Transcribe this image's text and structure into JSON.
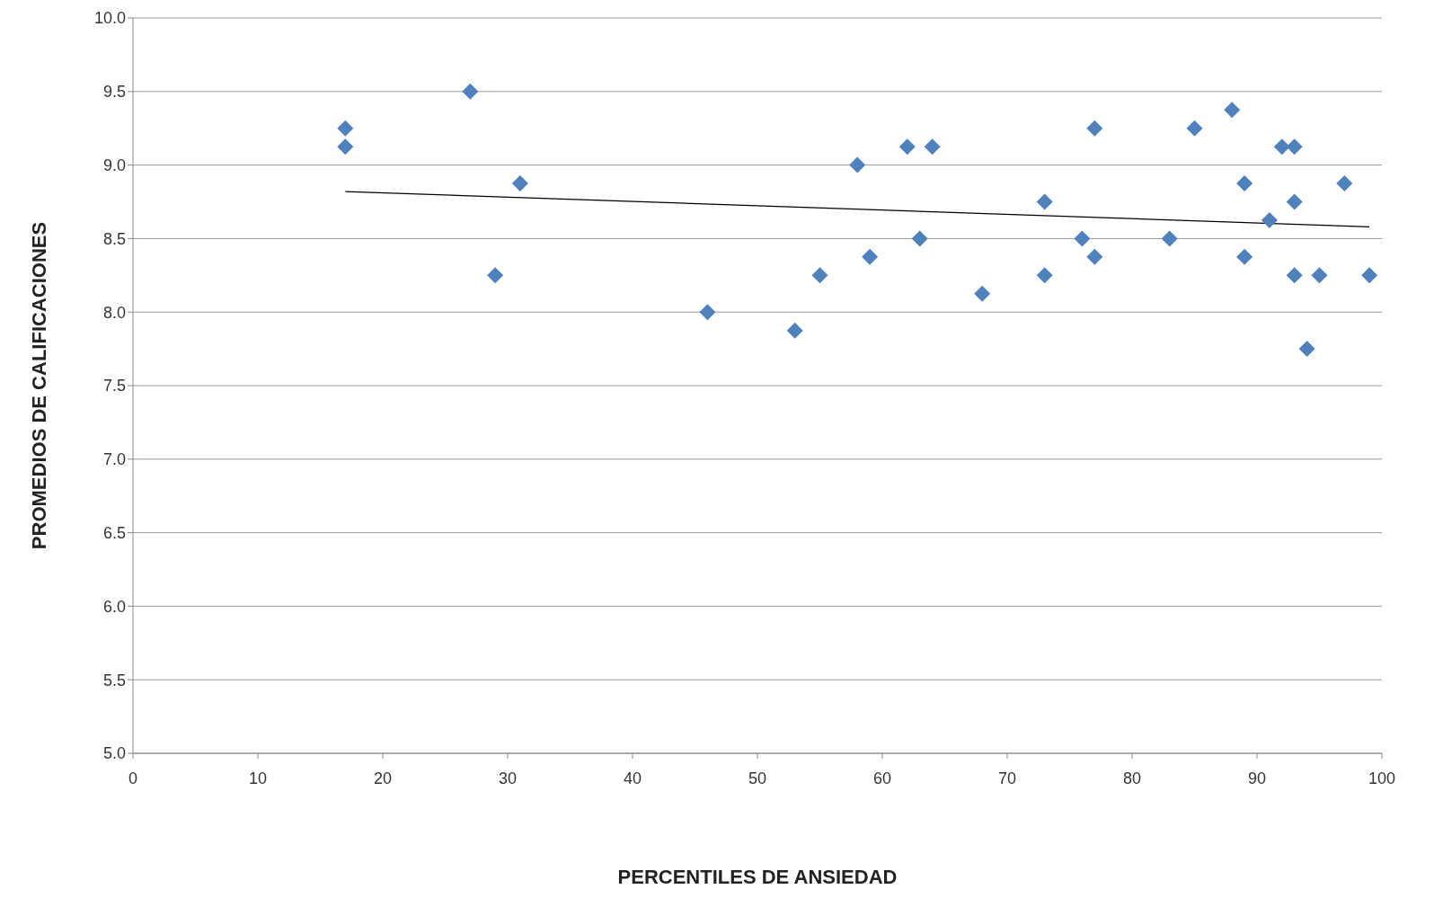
{
  "chart_data": {
    "type": "scatter",
    "xlabel": "PERCENTILES DE ANSIEDAD",
    "ylabel": "PROMEDIOS DE CALIFICACIONES",
    "xlim": [
      0,
      100
    ],
    "xticks": [
      0,
      10,
      20,
      30,
      40,
      50,
      60,
      70,
      80,
      90,
      100
    ],
    "ylim": [
      5,
      10
    ],
    "yticks": [
      {
        "value": 5,
        "label": "5.0"
      },
      {
        "value": 5.5,
        "label": "5.5"
      },
      {
        "value": 6,
        "label": "6.0"
      },
      {
        "value": 6.5,
        "label": "6.5"
      },
      {
        "value": 7,
        "label": "7.0"
      },
      {
        "value": 7.5,
        "label": "7.5"
      },
      {
        "value": 8,
        "label": "8.0"
      },
      {
        "value": 8.5,
        "label": "8.5"
      },
      {
        "value": 9,
        "label": "9.0"
      },
      {
        "value": 9.5,
        "label": "9.5"
      },
      {
        "value": 10,
        "label": "10.0"
      }
    ],
    "grid": "y",
    "marker": "diamond",
    "series": [
      {
        "color": "#4f81bd",
        "x": [
          17,
          17,
          27,
          29,
          31,
          46,
          53,
          55,
          58,
          59,
          62,
          63,
          64,
          68,
          73,
          73,
          76,
          77,
          77,
          83,
          85,
          88,
          89,
          89,
          91,
          92,
          93,
          93,
          93,
          94,
          95,
          97,
          99
        ],
        "values": [
          9.25,
          9.125,
          9.5,
          8.25,
          8.875,
          8.0,
          7.875,
          8.25,
          9.0,
          8.375,
          9.125,
          8.5,
          9.125,
          8.125,
          8.75,
          8.25,
          8.5,
          9.25,
          8.375,
          8.5,
          9.25,
          9.375,
          8.875,
          8.375,
          8.625,
          9.125,
          9.125,
          8.75,
          8.25,
          7.75,
          8.25,
          8.875,
          8.25
        ]
      },
      {
        "type": "line",
        "color": "#000000",
        "line_style": "solid",
        "marker": "none",
        "x": [
          17,
          99
        ],
        "values": [
          8.82,
          8.58
        ]
      }
    ]
  }
}
